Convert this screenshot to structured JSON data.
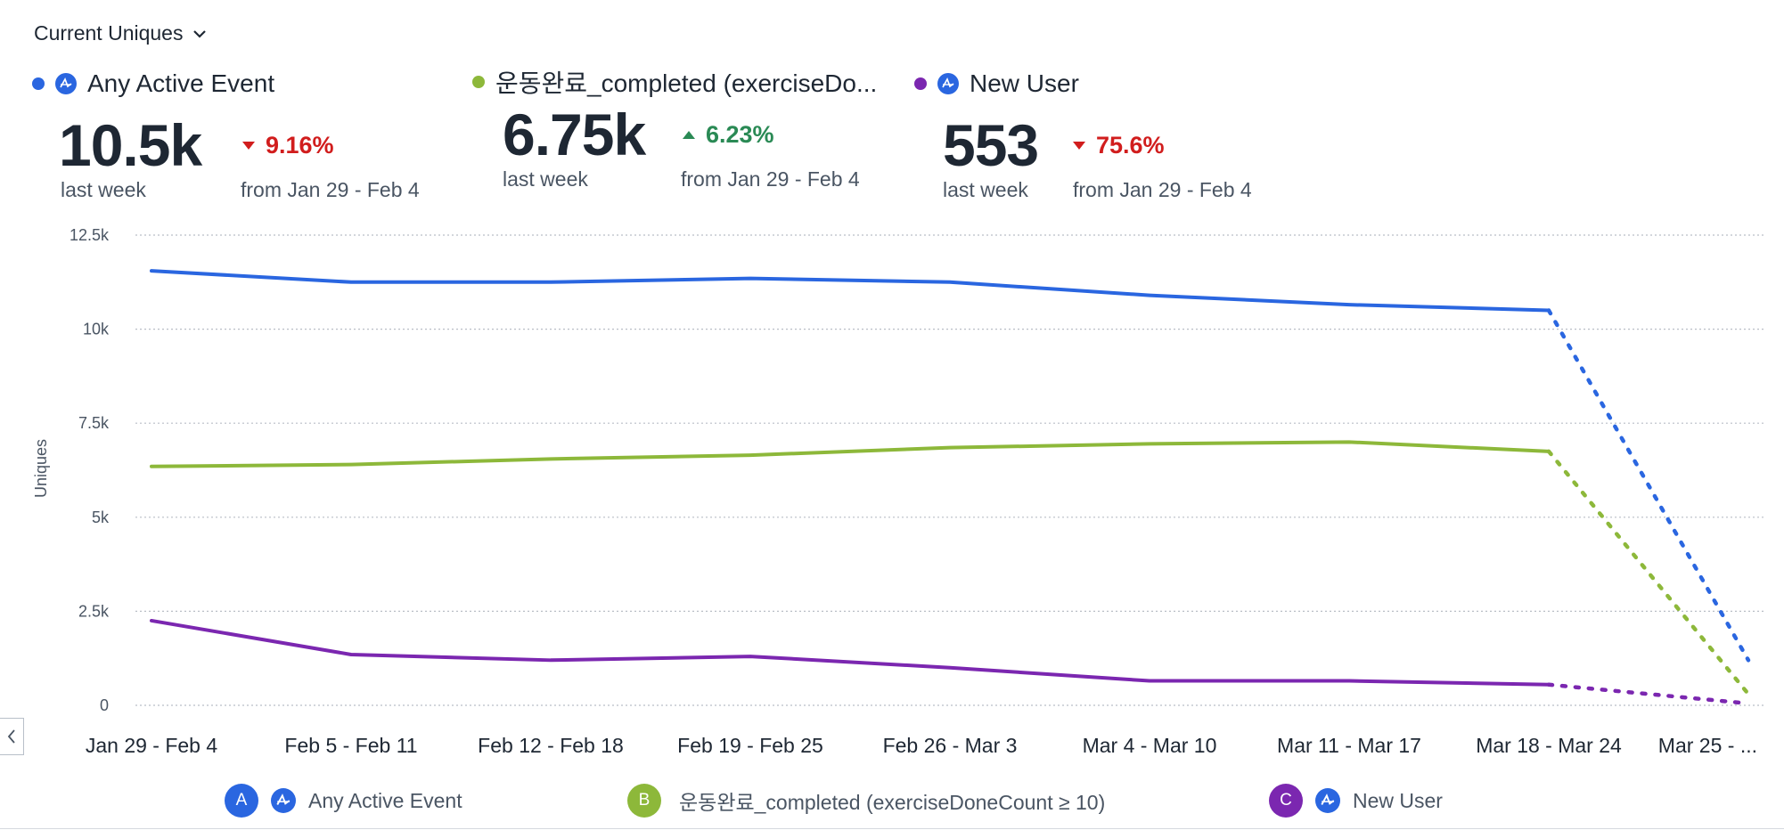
{
  "metric_selector": {
    "label": "Current Uniques"
  },
  "kpis": [
    {
      "name": "Any Active Event",
      "color": "#2a66e0",
      "show_icon": true,
      "value": "10.5k",
      "period": "last week",
      "delta": "9.16%",
      "direction": "down",
      "compare": "from Jan 29 - Feb 4"
    },
    {
      "name": "운동완료_completed (exerciseDo...",
      "color": "#8db83a",
      "show_icon": false,
      "value": "6.75k",
      "period": "last week",
      "delta": "6.23%",
      "direction": "up",
      "compare": "from Jan 29 - Feb 4"
    },
    {
      "name": "New User",
      "color": "#7b27b0",
      "show_icon": true,
      "value": "553",
      "period": "last week",
      "delta": "75.6%",
      "direction": "down",
      "compare": "from Jan 29 - Feb 4"
    }
  ],
  "chart_data": {
    "type": "line",
    "ylabel": "Uniques",
    "xlabel": "",
    "ylim": [
      0,
      12500
    ],
    "y_ticks": [
      0,
      2500,
      5000,
      7500,
      10000,
      12500
    ],
    "y_tick_labels": [
      "0",
      "2.5k",
      "5k",
      "7.5k",
      "10k",
      "12.5k"
    ],
    "categories": [
      "Jan 29 - Feb 4",
      "Feb 5 - Feb 11",
      "Feb 12 - Feb 18",
      "Feb 19 - Feb 25",
      "Feb 26 - Mar 3",
      "Mar 4 - Mar 10",
      "Mar 11 - Mar 17",
      "Mar 18 - Mar 24",
      "Mar 25 - ..."
    ],
    "incomplete_from_index": 7,
    "grid": true,
    "series": [
      {
        "name": "Any Active Event",
        "color": "#2a66e0",
        "values": [
          11550,
          11250,
          11250,
          11350,
          11250,
          10900,
          10650,
          10500,
          1200
        ]
      },
      {
        "name": "운동완료_completed (exerciseDoneCount ≥ 10)",
        "color": "#8db83a",
        "values": [
          6350,
          6400,
          6550,
          6650,
          6850,
          6950,
          7000,
          6750,
          300
        ]
      },
      {
        "name": "New User",
        "color": "#7b27b0",
        "values": [
          2250,
          1350,
          1200,
          1300,
          1000,
          650,
          650,
          550,
          50
        ]
      }
    ]
  },
  "legend": [
    {
      "letter": "A",
      "color": "#2a66e0",
      "show_icon": true,
      "label": "Any Active Event"
    },
    {
      "letter": "B",
      "color": "#8db83a",
      "show_icon": false,
      "label": "운동완료_completed (exerciseDoneCount ≥ 10)"
    },
    {
      "letter": "C",
      "color": "#7b27b0",
      "show_icon": true,
      "label": "New User"
    }
  ]
}
